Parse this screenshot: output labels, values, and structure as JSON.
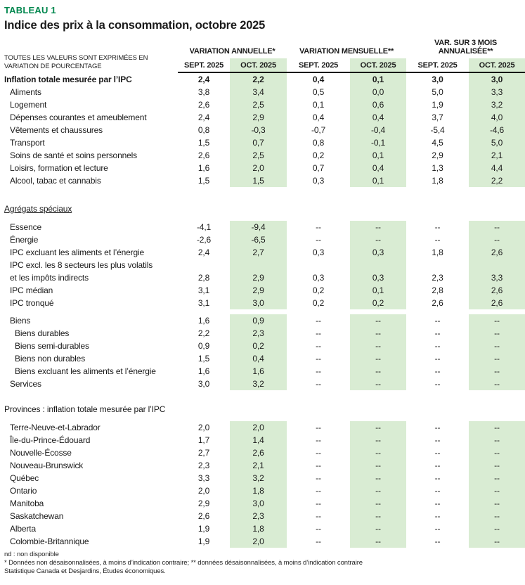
{
  "colors": {
    "accent_green": "#00874e",
    "band_green": "#d9ecd3",
    "header_rule": "#000000",
    "text": "#1a1a1a"
  },
  "title": {
    "kicker": "TABLEAU 1",
    "heading": "Indice des prix à la consommation, octobre 2025"
  },
  "header": {
    "note_lines": [
      "TOUTES LES VALEURS SONT EXPRIMÉES EN",
      "VARIATION DE POURCENTAGE"
    ],
    "groups": [
      "VARIATION ANNUELLE*",
      "VARIATION MENSUELLE**",
      "VAR. SUR 3 MOIS ANNUALISÉE**"
    ],
    "periods": [
      "SEPT. 2025",
      "OCT. 2025"
    ]
  },
  "rows": [
    {
      "t": "row",
      "indent": 0,
      "bold": true,
      "label": "Inflation totale mesurée par l’IPC",
      "v": [
        "2,4",
        "2,2",
        "0,4",
        "0,1",
        "3,0",
        "3,0"
      ]
    },
    {
      "t": "row",
      "indent": 1,
      "label": "Aliments",
      "v": [
        "3,8",
        "3,4",
        "0,5",
        "0,0",
        "5,0",
        "3,3"
      ]
    },
    {
      "t": "row",
      "indent": 1,
      "label": "Logement",
      "v": [
        "2,6",
        "2,5",
        "0,1",
        "0,6",
        "1,9",
        "3,2"
      ]
    },
    {
      "t": "row",
      "indent": 1,
      "label": "Dépenses courantes et ameublement",
      "v": [
        "2,4",
        "2,9",
        "0,4",
        "0,4",
        "3,7",
        "4,0"
      ]
    },
    {
      "t": "row",
      "indent": 1,
      "label": "Vêtements et chaussures",
      "v": [
        "0,8",
        "-0,3",
        "-0,7",
        "-0,4",
        "-5,4",
        "-4,6"
      ]
    },
    {
      "t": "row",
      "indent": 1,
      "label": "Transport",
      "v": [
        "1,5",
        "0,7",
        "0,8",
        "-0,1",
        "4,5",
        "5,0"
      ]
    },
    {
      "t": "row",
      "indent": 1,
      "label": "Soins de santé et soins personnels",
      "v": [
        "2,6",
        "2,5",
        "0,2",
        "0,1",
        "2,9",
        "2,1"
      ]
    },
    {
      "t": "row",
      "indent": 1,
      "label": "Loisirs, formation et lecture",
      "v": [
        "1,6",
        "2,0",
        "0,7",
        "0,4",
        "1,3",
        "4,4"
      ]
    },
    {
      "t": "row",
      "indent": 1,
      "label": "Alcool, tabac et cannabis",
      "v": [
        "1,5",
        "1,5",
        "0,3",
        "0,1",
        "1,8",
        "2,2"
      ]
    },
    {
      "t": "spacer",
      "h": 22
    },
    {
      "t": "section",
      "underline": true,
      "label": "Agrégats spéciaux"
    },
    {
      "t": "spacer",
      "h": 8
    },
    {
      "t": "row",
      "indent": 1,
      "label": "Essence",
      "v": [
        "-4,1",
        "-9,4",
        "--",
        "--",
        "--",
        "--"
      ]
    },
    {
      "t": "row",
      "indent": 1,
      "label": "Énergie",
      "v": [
        "-2,6",
        "-6,5",
        "--",
        "--",
        "--",
        "--"
      ]
    },
    {
      "t": "row",
      "indent": 1,
      "label": "IPC excluant les aliments et l’énergie",
      "v": [
        "2,4",
        "2,7",
        "0,3",
        "0,3",
        "1,8",
        "2,6"
      ]
    },
    {
      "t": "row2",
      "indent": 1,
      "label_lines": [
        "IPC excl. les 8 secteurs les plus volatils",
        "et les impôts indirects"
      ],
      "v": [
        "2,8",
        "2,9",
        "0,3",
        "0,3",
        "2,3",
        "3,3"
      ]
    },
    {
      "t": "row",
      "indent": 1,
      "label": "IPC médian",
      "v": [
        "3,1",
        "2,9",
        "0,2",
        "0,1",
        "2,8",
        "2,6"
      ]
    },
    {
      "t": "row",
      "indent": 1,
      "label": "IPC tronqué",
      "v": [
        "3,1",
        "3,0",
        "0,2",
        "0,2",
        "2,6",
        "2,6"
      ]
    },
    {
      "t": "spacer",
      "h": 7
    },
    {
      "t": "row",
      "indent": 1,
      "label": "Biens",
      "v": [
        "1,6",
        "0,9",
        "--",
        "--",
        "--",
        "--"
      ]
    },
    {
      "t": "row",
      "indent": 2,
      "label": "Biens durables",
      "v": [
        "2,2",
        "2,3",
        "--",
        "--",
        "--",
        "--"
      ]
    },
    {
      "t": "row",
      "indent": 2,
      "label": "Biens semi-durables",
      "v": [
        "0,9",
        "0,2",
        "--",
        "--",
        "--",
        "--"
      ]
    },
    {
      "t": "row",
      "indent": 2,
      "label": "Biens non durables",
      "v": [
        "1,5",
        "0,4",
        "--",
        "--",
        "--",
        "--"
      ]
    },
    {
      "t": "row",
      "indent": 2,
      "label": "Biens excluant les aliments et l’énergie",
      "v": [
        "1,6",
        "1,6",
        "--",
        "--",
        "--",
        "--"
      ]
    },
    {
      "t": "row",
      "indent": 1,
      "label": "Services",
      "v": [
        "3,0",
        "3,2",
        "--",
        "--",
        "--",
        "--"
      ]
    },
    {
      "t": "spacer",
      "h": 18
    },
    {
      "t": "section",
      "underline": false,
      "label": "Provinces : inflation totale mesurée par l’IPC"
    },
    {
      "t": "spacer",
      "h": 8
    },
    {
      "t": "row",
      "indent": 1,
      "label": "Terre-Neuve-et-Labrador",
      "v": [
        "2,0",
        "2,0",
        "--",
        "--",
        "--",
        "--"
      ]
    },
    {
      "t": "row",
      "indent": 1,
      "label": "Île-du-Prince-Édouard",
      "v": [
        "1,7",
        "1,4",
        "--",
        "--",
        "--",
        "--"
      ]
    },
    {
      "t": "row",
      "indent": 1,
      "label": "Nouvelle-Écosse",
      "v": [
        "2,7",
        "2,6",
        "--",
        "--",
        "--",
        "--"
      ]
    },
    {
      "t": "row",
      "indent": 1,
      "label": "Nouveau-Brunswick",
      "v": [
        "2,3",
        "2,1",
        "--",
        "--",
        "--",
        "--"
      ]
    },
    {
      "t": "row",
      "indent": 1,
      "label": "Québec",
      "v": [
        "3,3",
        "3,2",
        "--",
        "--",
        "--",
        "--"
      ]
    },
    {
      "t": "row",
      "indent": 1,
      "label": "Ontario",
      "v": [
        "2,0",
        "1,8",
        "--",
        "--",
        "--",
        "--"
      ]
    },
    {
      "t": "row",
      "indent": 1,
      "label": "Manitoba",
      "v": [
        "2,9",
        "3,0",
        "--",
        "--",
        "--",
        "--"
      ]
    },
    {
      "t": "row",
      "indent": 1,
      "label": "Saskatchewan",
      "v": [
        "2,6",
        "2,3",
        "--",
        "--",
        "--",
        "--"
      ]
    },
    {
      "t": "row",
      "indent": 1,
      "label": "Alberta",
      "v": [
        "1,9",
        "1,8",
        "--",
        "--",
        "--",
        "--"
      ]
    },
    {
      "t": "row",
      "indent": 1,
      "label": "Colombie-Britannique",
      "v": [
        "1,9",
        "2,0",
        "--",
        "--",
        "--",
        "--"
      ]
    }
  ],
  "footnotes": [
    "nd : non disponible",
    "* Données non désaisonnalisées, à moins d’indication contraire; ** données désaisonnalisées, à moins d’indication contraire",
    "Statistique Canada et Desjardins, Études économiques."
  ]
}
